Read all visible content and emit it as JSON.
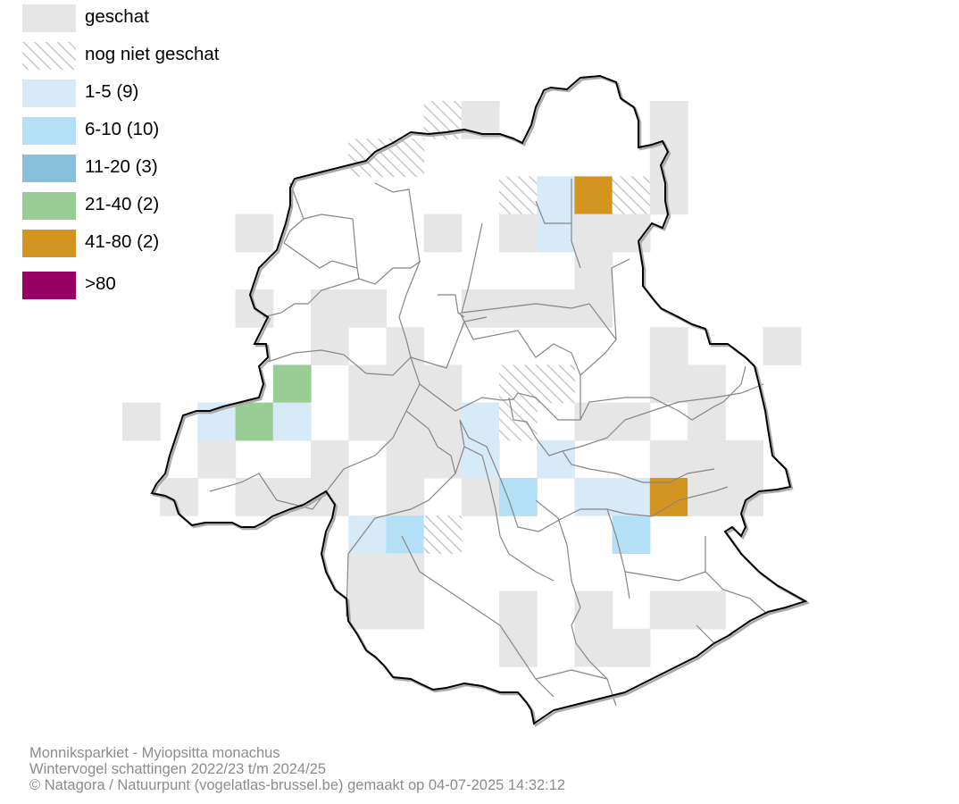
{
  "legend": {
    "items": [
      {
        "label": "geschat",
        "style": "solid",
        "color": "#e6e6e6"
      },
      {
        "label": "nog niet geschat",
        "style": "hatch",
        "color": "#cccccc"
      },
      {
        "label": "1-5 (9)",
        "style": "solid",
        "color": "#d6eaf8"
      },
      {
        "label": "6-10 (10)",
        "style": "solid",
        "color": "#b3e0f7"
      },
      {
        "label": "11-20 (3)",
        "style": "solid",
        "color": "#88c0dc"
      },
      {
        "label": "21-40 (2)",
        "style": "solid",
        "color": "#9acd95"
      },
      {
        "label": "41-80 (2)",
        "style": "solid",
        "color": "#d39420"
      },
      {
        "label": ">80",
        "style": "solid",
        "color": "#990066"
      }
    ]
  },
  "grid": {
    "cells": [
      {
        "col": 8,
        "row": 0,
        "c": 1
      },
      {
        "col": 9,
        "row": 0,
        "c": 0
      },
      {
        "col": 14,
        "row": 0,
        "c": 0
      },
      {
        "col": 6,
        "row": 1,
        "c": 1
      },
      {
        "col": 7,
        "row": 1,
        "c": 1
      },
      {
        "col": 14,
        "row": 1,
        "c": 0
      },
      {
        "col": 10,
        "row": 2,
        "c": 1
      },
      {
        "col": 11,
        "row": 2,
        "c": 2
      },
      {
        "col": 12,
        "row": 2,
        "c": 6
      },
      {
        "col": 13,
        "row": 2,
        "c": 1
      },
      {
        "col": 14,
        "row": 2,
        "c": 0
      },
      {
        "col": 3,
        "row": 3,
        "c": 0
      },
      {
        "col": 8,
        "row": 3,
        "c": 0
      },
      {
        "col": 10,
        "row": 3,
        "c": 0
      },
      {
        "col": 11,
        "row": 3,
        "c": 2
      },
      {
        "col": 12,
        "row": 3,
        "c": 0
      },
      {
        "col": 13,
        "row": 3,
        "c": 0
      },
      {
        "col": 12,
        "row": 4,
        "c": 0
      },
      {
        "col": 3,
        "row": 5,
        "c": 0
      },
      {
        "col": 5,
        "row": 5,
        "c": 0
      },
      {
        "col": 6,
        "row": 5,
        "c": 0
      },
      {
        "col": 9,
        "row": 5,
        "c": 0
      },
      {
        "col": 10,
        "row": 5,
        "c": 0
      },
      {
        "col": 11,
        "row": 5,
        "c": 0
      },
      {
        "col": 12,
        "row": 5,
        "c": 0
      },
      {
        "col": 5,
        "row": 6,
        "c": 0
      },
      {
        "col": 7,
        "row": 6,
        "c": 0
      },
      {
        "col": 14,
        "row": 6,
        "c": 0
      },
      {
        "col": 17,
        "row": 6,
        "c": 0
      },
      {
        "col": 4,
        "row": 7,
        "c": 5
      },
      {
        "col": 6,
        "row": 7,
        "c": 0
      },
      {
        "col": 7,
        "row": 7,
        "c": 0
      },
      {
        "col": 8,
        "row": 7,
        "c": 0
      },
      {
        "col": 10,
        "row": 7,
        "c": 1
      },
      {
        "col": 11,
        "row": 7,
        "c": 1
      },
      {
        "col": 14,
        "row": 7,
        "c": 0
      },
      {
        "col": 15,
        "row": 7,
        "c": 0
      },
      {
        "col": 0,
        "row": 8,
        "c": 0
      },
      {
        "col": 2,
        "row": 8,
        "c": 2
      },
      {
        "col": 3,
        "row": 8,
        "c": 5
      },
      {
        "col": 4,
        "row": 8,
        "c": 2
      },
      {
        "col": 6,
        "row": 8,
        "c": 0
      },
      {
        "col": 7,
        "row": 8,
        "c": 0
      },
      {
        "col": 8,
        "row": 8,
        "c": 0
      },
      {
        "col": 9,
        "row": 8,
        "c": 2
      },
      {
        "col": 10,
        "row": 8,
        "c": 1
      },
      {
        "col": 12,
        "row": 8,
        "c": 0
      },
      {
        "col": 13,
        "row": 8,
        "c": 0
      },
      {
        "col": 15,
        "row": 8,
        "c": 0
      },
      {
        "col": 2,
        "row": 9,
        "c": 0
      },
      {
        "col": 5,
        "row": 9,
        "c": 0
      },
      {
        "col": 7,
        "row": 9,
        "c": 0
      },
      {
        "col": 8,
        "row": 9,
        "c": 0
      },
      {
        "col": 9,
        "row": 9,
        "c": 2
      },
      {
        "col": 11,
        "row": 9,
        "c": 2
      },
      {
        "col": 14,
        "row": 9,
        "c": 0
      },
      {
        "col": 15,
        "row": 9,
        "c": 0
      },
      {
        "col": 16,
        "row": 9,
        "c": 0
      },
      {
        "col": 1,
        "row": 10,
        "c": 0
      },
      {
        "col": 3,
        "row": 10,
        "c": 0
      },
      {
        "col": 4,
        "row": 10,
        "c": 0
      },
      {
        "col": 5,
        "row": 10,
        "c": 0
      },
      {
        "col": 7,
        "row": 10,
        "c": 0
      },
      {
        "col": 9,
        "row": 10,
        "c": 0
      },
      {
        "col": 10,
        "row": 10,
        "c": 3
      },
      {
        "col": 12,
        "row": 10,
        "c": 2
      },
      {
        "col": 13,
        "row": 10,
        "c": 2
      },
      {
        "col": 14,
        "row": 10,
        "c": 6
      },
      {
        "col": 15,
        "row": 10,
        "c": 0
      },
      {
        "col": 16,
        "row": 10,
        "c": 0
      },
      {
        "col": 6,
        "row": 11,
        "c": 2
      },
      {
        "col": 7,
        "row": 11,
        "c": 3
      },
      {
        "col": 8,
        "row": 11,
        "c": 1
      },
      {
        "col": 13,
        "row": 11,
        "c": 3
      },
      {
        "col": 6,
        "row": 12,
        "c": 0
      },
      {
        "col": 7,
        "row": 12,
        "c": 0
      },
      {
        "col": 6,
        "row": 13,
        "c": 0
      },
      {
        "col": 7,
        "row": 13,
        "c": 0
      },
      {
        "col": 10,
        "row": 13,
        "c": 0
      },
      {
        "col": 12,
        "row": 13,
        "c": 0
      },
      {
        "col": 14,
        "row": 13,
        "c": 0
      },
      {
        "col": 15,
        "row": 13,
        "c": 0
      },
      {
        "col": 10,
        "row": 14,
        "c": 0
      },
      {
        "col": 12,
        "row": 14,
        "c": 0
      },
      {
        "col": 13,
        "row": 14,
        "c": 0
      }
    ]
  },
  "footer": {
    "line1": "Monniksparkiet - Myiopsitta monachus",
    "line2": "Wintervogel schattingen 2022/23 t/m 2024/25",
    "line3": "© Natagora / Natuurpunt (vogelatlas-brussel.be) gemaakt op 04-07-2025 14:32:12"
  }
}
